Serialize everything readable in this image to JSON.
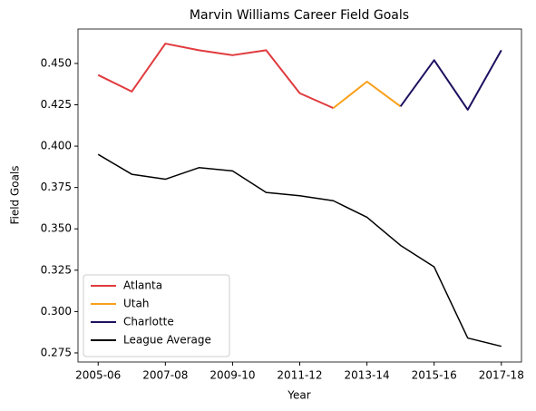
{
  "chart_data": {
    "type": "line",
    "title": "Marvin Williams Career Field Goals",
    "xlabel": "Year",
    "ylabel": "Field Goals",
    "categories": [
      "2005-06",
      null,
      "2007-08",
      null,
      "2009-10",
      null,
      "2011-12",
      null,
      "2013-14",
      null,
      "2015-16",
      null,
      "2017-18"
    ],
    "xlim": [
      -0.6,
      12.6
    ],
    "ylim": [
      0.2695,
      0.4708
    ],
    "yticks": [
      0.275,
      {
        "value": 0.3,
        "label": "0.300"
      },
      0.325,
      {
        "value": 0.35,
        "label": "0.350"
      },
      0.375,
      {
        "value": 0.4,
        "label": "0.400"
      },
      0.425,
      {
        "value": 0.45,
        "label": "0.450"
      }
    ],
    "legend": "lower left",
    "series": [
      {
        "name": "Atlanta",
        "color": "#e03a3e",
        "values": [
          0.443,
          0.433,
          0.462,
          0.458,
          0.455,
          0.458,
          0.432,
          0.423,
          null,
          null,
          null,
          null,
          null
        ]
      },
      {
        "name": "Utah",
        "color": "#f9a01b",
        "values": [
          null,
          null,
          null,
          null,
          null,
          null,
          null,
          0.423,
          0.439,
          0.424,
          null,
          null,
          null
        ]
      },
      {
        "name": "Charlotte",
        "color": "#1d1160",
        "values": [
          null,
          null,
          null,
          null,
          null,
          null,
          null,
          null,
          null,
          0.424,
          0.452,
          0.422,
          0.458
        ]
      },
      {
        "name": "League Average",
        "color": "#000000",
        "values": [
          0.395,
          0.383,
          0.38,
          0.387,
          0.385,
          0.372,
          0.37,
          0.367,
          0.357,
          0.34,
          0.327,
          0.284,
          0.279
        ]
      }
    ]
  }
}
